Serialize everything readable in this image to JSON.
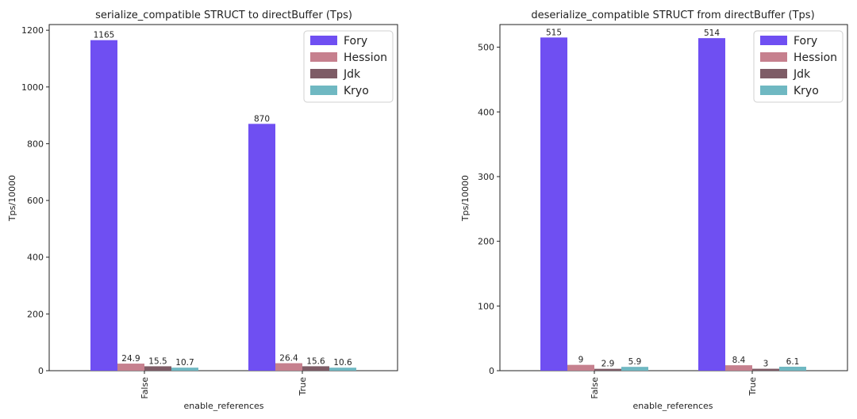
{
  "chart_data": [
    {
      "type": "bar",
      "title": "serialize_compatible STRUCT to directBuffer (Tps)",
      "xlabel": "enable_references",
      "ylabel": "Tps/10000",
      "categories": [
        "False",
        "True"
      ],
      "ylim": [
        0,
        1220
      ],
      "yticks": [
        0,
        200,
        400,
        600,
        800,
        1000,
        1200
      ],
      "legend_position": "top-right",
      "series": [
        {
          "name": "Fory",
          "color": "#6f4ff2",
          "values": [
            1165,
            870
          ],
          "labels": [
            "1165",
            "870"
          ]
        },
        {
          "name": "Hession",
          "color": "#c6808e",
          "values": [
            24.9,
            26.4
          ],
          "labels": [
            "24.9",
            "26.4"
          ]
        },
        {
          "name": "Jdk",
          "color": "#7e5c66",
          "values": [
            15.5,
            15.6
          ],
          "labels": [
            "15.5",
            "15.6"
          ]
        },
        {
          "name": "Kryo",
          "color": "#6fb8c2",
          "values": [
            10.7,
            10.6
          ],
          "labels": [
            "10.7",
            "10.6"
          ]
        }
      ]
    },
    {
      "type": "bar",
      "title": "deserialize_compatible STRUCT from directBuffer (Tps)",
      "xlabel": "enable_references",
      "ylabel": "Tps/10000",
      "categories": [
        "False",
        "True"
      ],
      "ylim": [
        0,
        535
      ],
      "yticks": [
        0,
        100,
        200,
        300,
        400,
        500
      ],
      "legend_position": "top-right",
      "series": [
        {
          "name": "Fory",
          "color": "#6f4ff2",
          "values": [
            515,
            514
          ],
          "labels": [
            "515",
            "514"
          ]
        },
        {
          "name": "Hession",
          "color": "#c6808e",
          "values": [
            9,
            8.4
          ],
          "labels": [
            "9",
            "8.4"
          ]
        },
        {
          "name": "Jdk",
          "color": "#7e5c66",
          "values": [
            2.9,
            3
          ],
          "labels": [
            "2.9",
            "3"
          ]
        },
        {
          "name": "Kryo",
          "color": "#6fb8c2",
          "values": [
            5.9,
            6.1
          ],
          "labels": [
            "5.9",
            "6.1"
          ]
        }
      ]
    }
  ]
}
